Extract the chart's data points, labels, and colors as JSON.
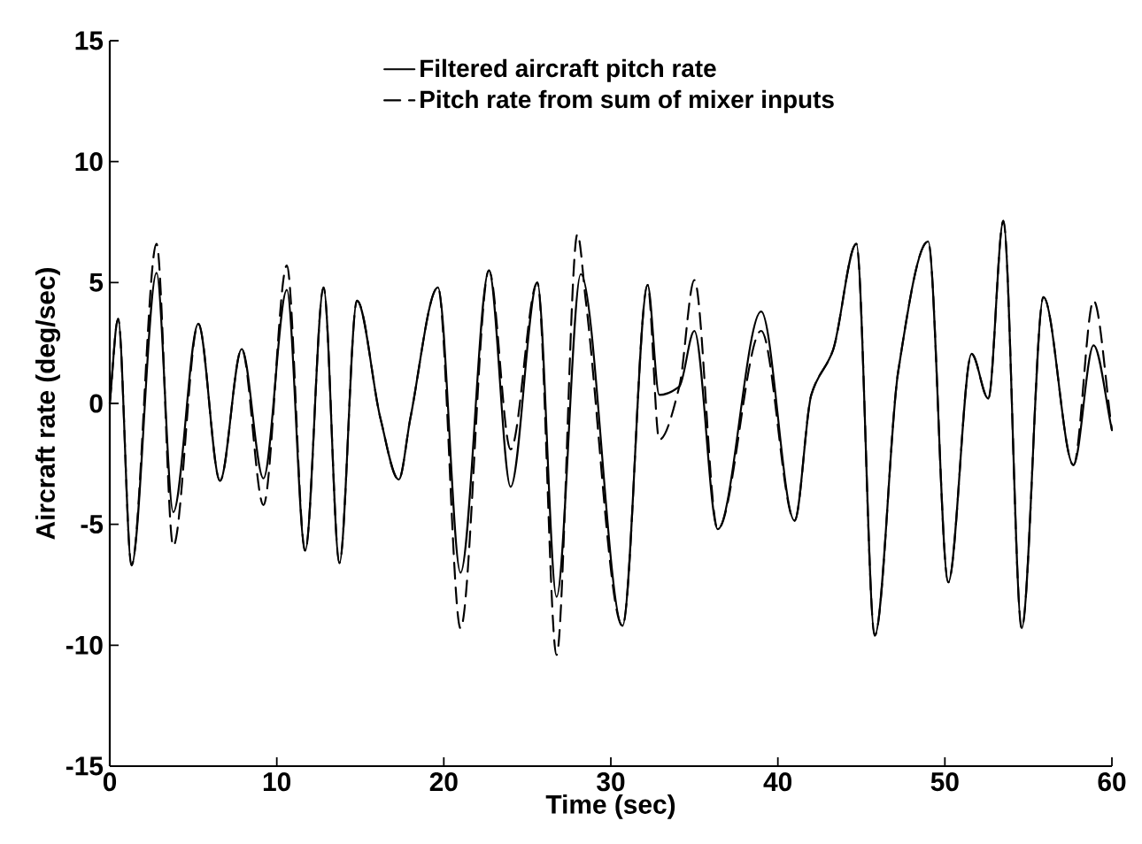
{
  "chart_data": {
    "type": "line",
    "xlabel": "Time (sec)",
    "ylabel": "Aircraft rate (deg/sec)",
    "xlim": [
      0,
      60
    ],
    "ylim": [
      -15,
      15
    ],
    "xticks": [
      0,
      10,
      20,
      30,
      40,
      50,
      60
    ],
    "yticks": [
      -15,
      -10,
      -5,
      0,
      5,
      10,
      15
    ],
    "legend": "top",
    "grid": false,
    "marker": "none",
    "series": [
      {
        "name": "Filtered aircraft pitch rate",
        "color": "#000000",
        "line_style": "solid",
        "x": [
          0,
          0.5,
          1.3,
          2.8,
          3.8,
          5.3,
          6.6,
          7.9,
          9.2,
          10.6,
          11.7,
          12.8,
          13.75,
          14.8,
          16.2,
          17.3,
          18.0,
          19.65,
          21.0,
          22.7,
          24.0,
          25.6,
          26.75,
          28.2,
          30.7,
          32.2,
          32.9,
          34.1,
          35.0,
          36.4,
          39.0,
          41.0,
          42.0,
          43.3,
          44.7,
          45.8,
          47.2,
          49.0,
          50.2,
          51.6,
          52.6,
          53.5,
          54.6,
          55.9,
          57.7,
          58.9,
          60
        ],
        "values": [
          0,
          3.5,
          -6.7,
          5.4,
          -4.5,
          3.3,
          -3.2,
          2.25,
          -3.1,
          4.7,
          -6.1,
          4.8,
          -6.6,
          4.25,
          -0.6,
          -3.15,
          -0.6,
          4.8,
          -7.0,
          5.5,
          -3.45,
          5.0,
          -8.0,
          5.35,
          -9.2,
          4.9,
          0.35,
          0.7,
          3.0,
          -5.2,
          3.8,
          -4.85,
          0.35,
          2.2,
          6.6,
          -9.6,
          1.3,
          6.7,
          -7.4,
          2.05,
          0.2,
          7.55,
          -9.3,
          4.4,
          -2.55,
          2.4,
          -1.1
        ]
      },
      {
        "name": "Pitch rate from sum of mixer inputs",
        "color": "#000000",
        "line_style": "dashed",
        "x": [
          0,
          0.5,
          1.3,
          2.8,
          3.8,
          5.3,
          6.6,
          7.9,
          9.2,
          10.6,
          11.7,
          12.8,
          13.75,
          14.8,
          16.2,
          17.3,
          18.0,
          19.65,
          21.0,
          22.7,
          24.0,
          25.6,
          26.75,
          28.0,
          28.5,
          30.7,
          32.2,
          32.9,
          34.1,
          35.0,
          36.4,
          39.0,
          41.0,
          42.0,
          43.3,
          44.7,
          45.8,
          47.2,
          49.0,
          50.2,
          51.6,
          52.6,
          53.5,
          54.6,
          55.9,
          57.7,
          58.9,
          60
        ],
        "values": [
          0,
          3.5,
          -6.7,
          6.6,
          -5.9,
          3.3,
          -3.2,
          2.25,
          -4.2,
          5.7,
          -6.1,
          4.8,
          -6.6,
          4.25,
          -0.6,
          -3.15,
          -0.6,
          4.8,
          -9.3,
          5.5,
          -1.9,
          5.0,
          -10.4,
          7.0,
          4.25,
          -9.2,
          4.9,
          -1.5,
          0.7,
          5.1,
          -5.2,
          3.0,
          -4.85,
          0.35,
          2.2,
          6.6,
          -9.6,
          1.3,
          6.7,
          -7.4,
          2.05,
          0.2,
          7.55,
          -9.3,
          4.4,
          -2.55,
          4.25,
          -1.1
        ]
      }
    ]
  }
}
